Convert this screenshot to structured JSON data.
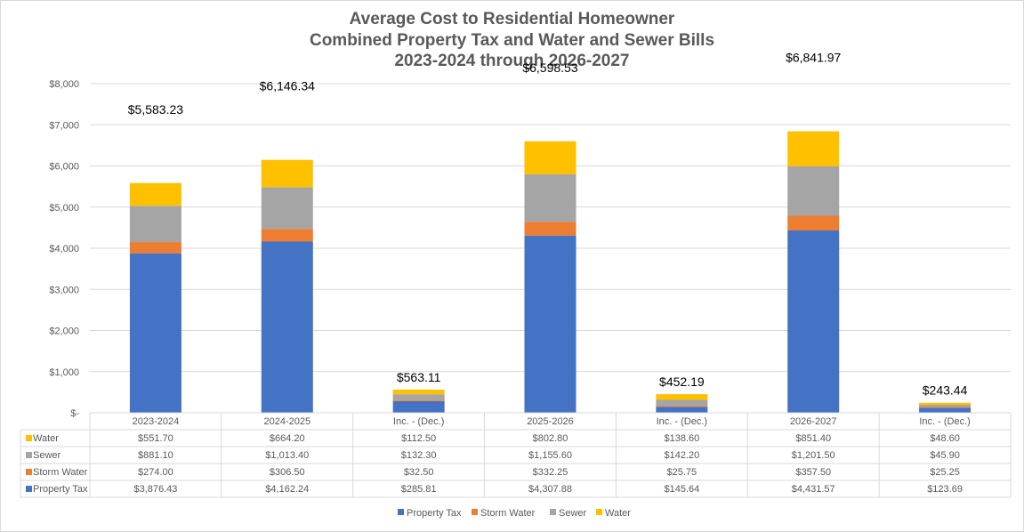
{
  "chart_data": {
    "type": "bar",
    "stacked": true,
    "title": [
      "Average Cost to Residential Homeowner",
      "Combined Property Tax and Water and Sewer Bills",
      "2023-2024 through 2026-2027"
    ],
    "categories": [
      "2023-2024",
      "2024-2025",
      "Inc. - (Dec.)",
      "2025-2026",
      "Inc. - (Dec.)",
      "2026-2027",
      "Inc. - (Dec.)"
    ],
    "series": [
      {
        "name": "Property Tax",
        "color": "#4472c4",
        "values": [
          3876.43,
          4162.24,
          285.81,
          4307.88,
          145.64,
          4431.57,
          123.69
        ],
        "labels": [
          "$3,876.43",
          "$4,162.24",
          "$285.81",
          "$4,307.88",
          "$145.64",
          "$4,431.57",
          "$123.69"
        ]
      },
      {
        "name": "Storm Water",
        "color": "#ed7d31",
        "values": [
          274.0,
          306.5,
          32.5,
          332.25,
          25.75,
          357.5,
          25.25
        ],
        "labels": [
          "$274.00",
          "$306.50",
          "$32.50",
          "$332.25",
          "$25.75",
          "$357.50",
          "$25.25"
        ]
      },
      {
        "name": "Sewer",
        "color": "#a5a5a5",
        "values": [
          881.1,
          1013.4,
          132.3,
          1155.6,
          142.2,
          1201.5,
          45.9
        ],
        "labels": [
          "$881.10",
          "$1,013.40",
          "$132.30",
          "$1,155.60",
          "$142.20",
          "$1,201.50",
          "$45.90"
        ]
      },
      {
        "name": "Water",
        "color": "#ffc000",
        "values": [
          551.7,
          664.2,
          112.5,
          802.8,
          138.6,
          851.4,
          48.6
        ],
        "labels": [
          "$551.70",
          "$664.20",
          "$112.50",
          "$802.80",
          "$138.60",
          "$851.40",
          "$48.60"
        ]
      }
    ],
    "totals": [
      "$5,583.23",
      "$6,146.34",
      "$563.11",
      "$6,598.53",
      "$452.19",
      "$6,841.97",
      "$243.44"
    ],
    "y_ticks": [
      0,
      1000,
      2000,
      3000,
      4000,
      5000,
      6000,
      7000,
      8000
    ],
    "y_tick_labels": [
      "$-",
      "$1,000",
      "$2,000",
      "$3,000",
      "$4,000",
      "$5,000",
      "$6,000",
      "$7,000",
      "$8,000"
    ],
    "ylim": [
      0,
      8000
    ],
    "grid": true,
    "legend_placement": "bottom",
    "data_table": true
  }
}
